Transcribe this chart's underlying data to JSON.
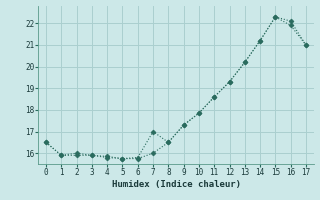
{
  "xlabel": "Humidex (Indice chaleur)",
  "x": [
    0,
    1,
    2,
    3,
    4,
    5,
    6,
    7,
    8,
    9,
    10,
    11,
    12,
    13,
    14,
    15,
    16,
    17
  ],
  "line1": [
    16.5,
    15.9,
    15.9,
    15.9,
    15.8,
    15.75,
    15.75,
    16.0,
    16.5,
    17.3,
    17.85,
    18.6,
    19.3,
    20.2,
    21.2,
    22.3,
    22.1,
    21.0
  ],
  "line2": [
    16.5,
    15.9,
    16.0,
    15.9,
    15.85,
    15.75,
    15.8,
    17.0,
    16.5,
    17.3,
    17.85,
    18.6,
    19.3,
    20.2,
    21.2,
    22.3,
    21.9,
    21.0
  ],
  "line_color": "#2a6b5e",
  "bg_color": "#cce8e8",
  "grid_color": "#aacfcf",
  "ylim": [
    15.5,
    22.8
  ],
  "yticks": [
    16,
    17,
    18,
    19,
    20,
    21,
    22
  ],
  "xlim": [
    -0.5,
    17.5
  ],
  "xticks": [
    0,
    1,
    2,
    3,
    4,
    5,
    6,
    7,
    8,
    9,
    10,
    11,
    12,
    13,
    14,
    15,
    16,
    17
  ]
}
